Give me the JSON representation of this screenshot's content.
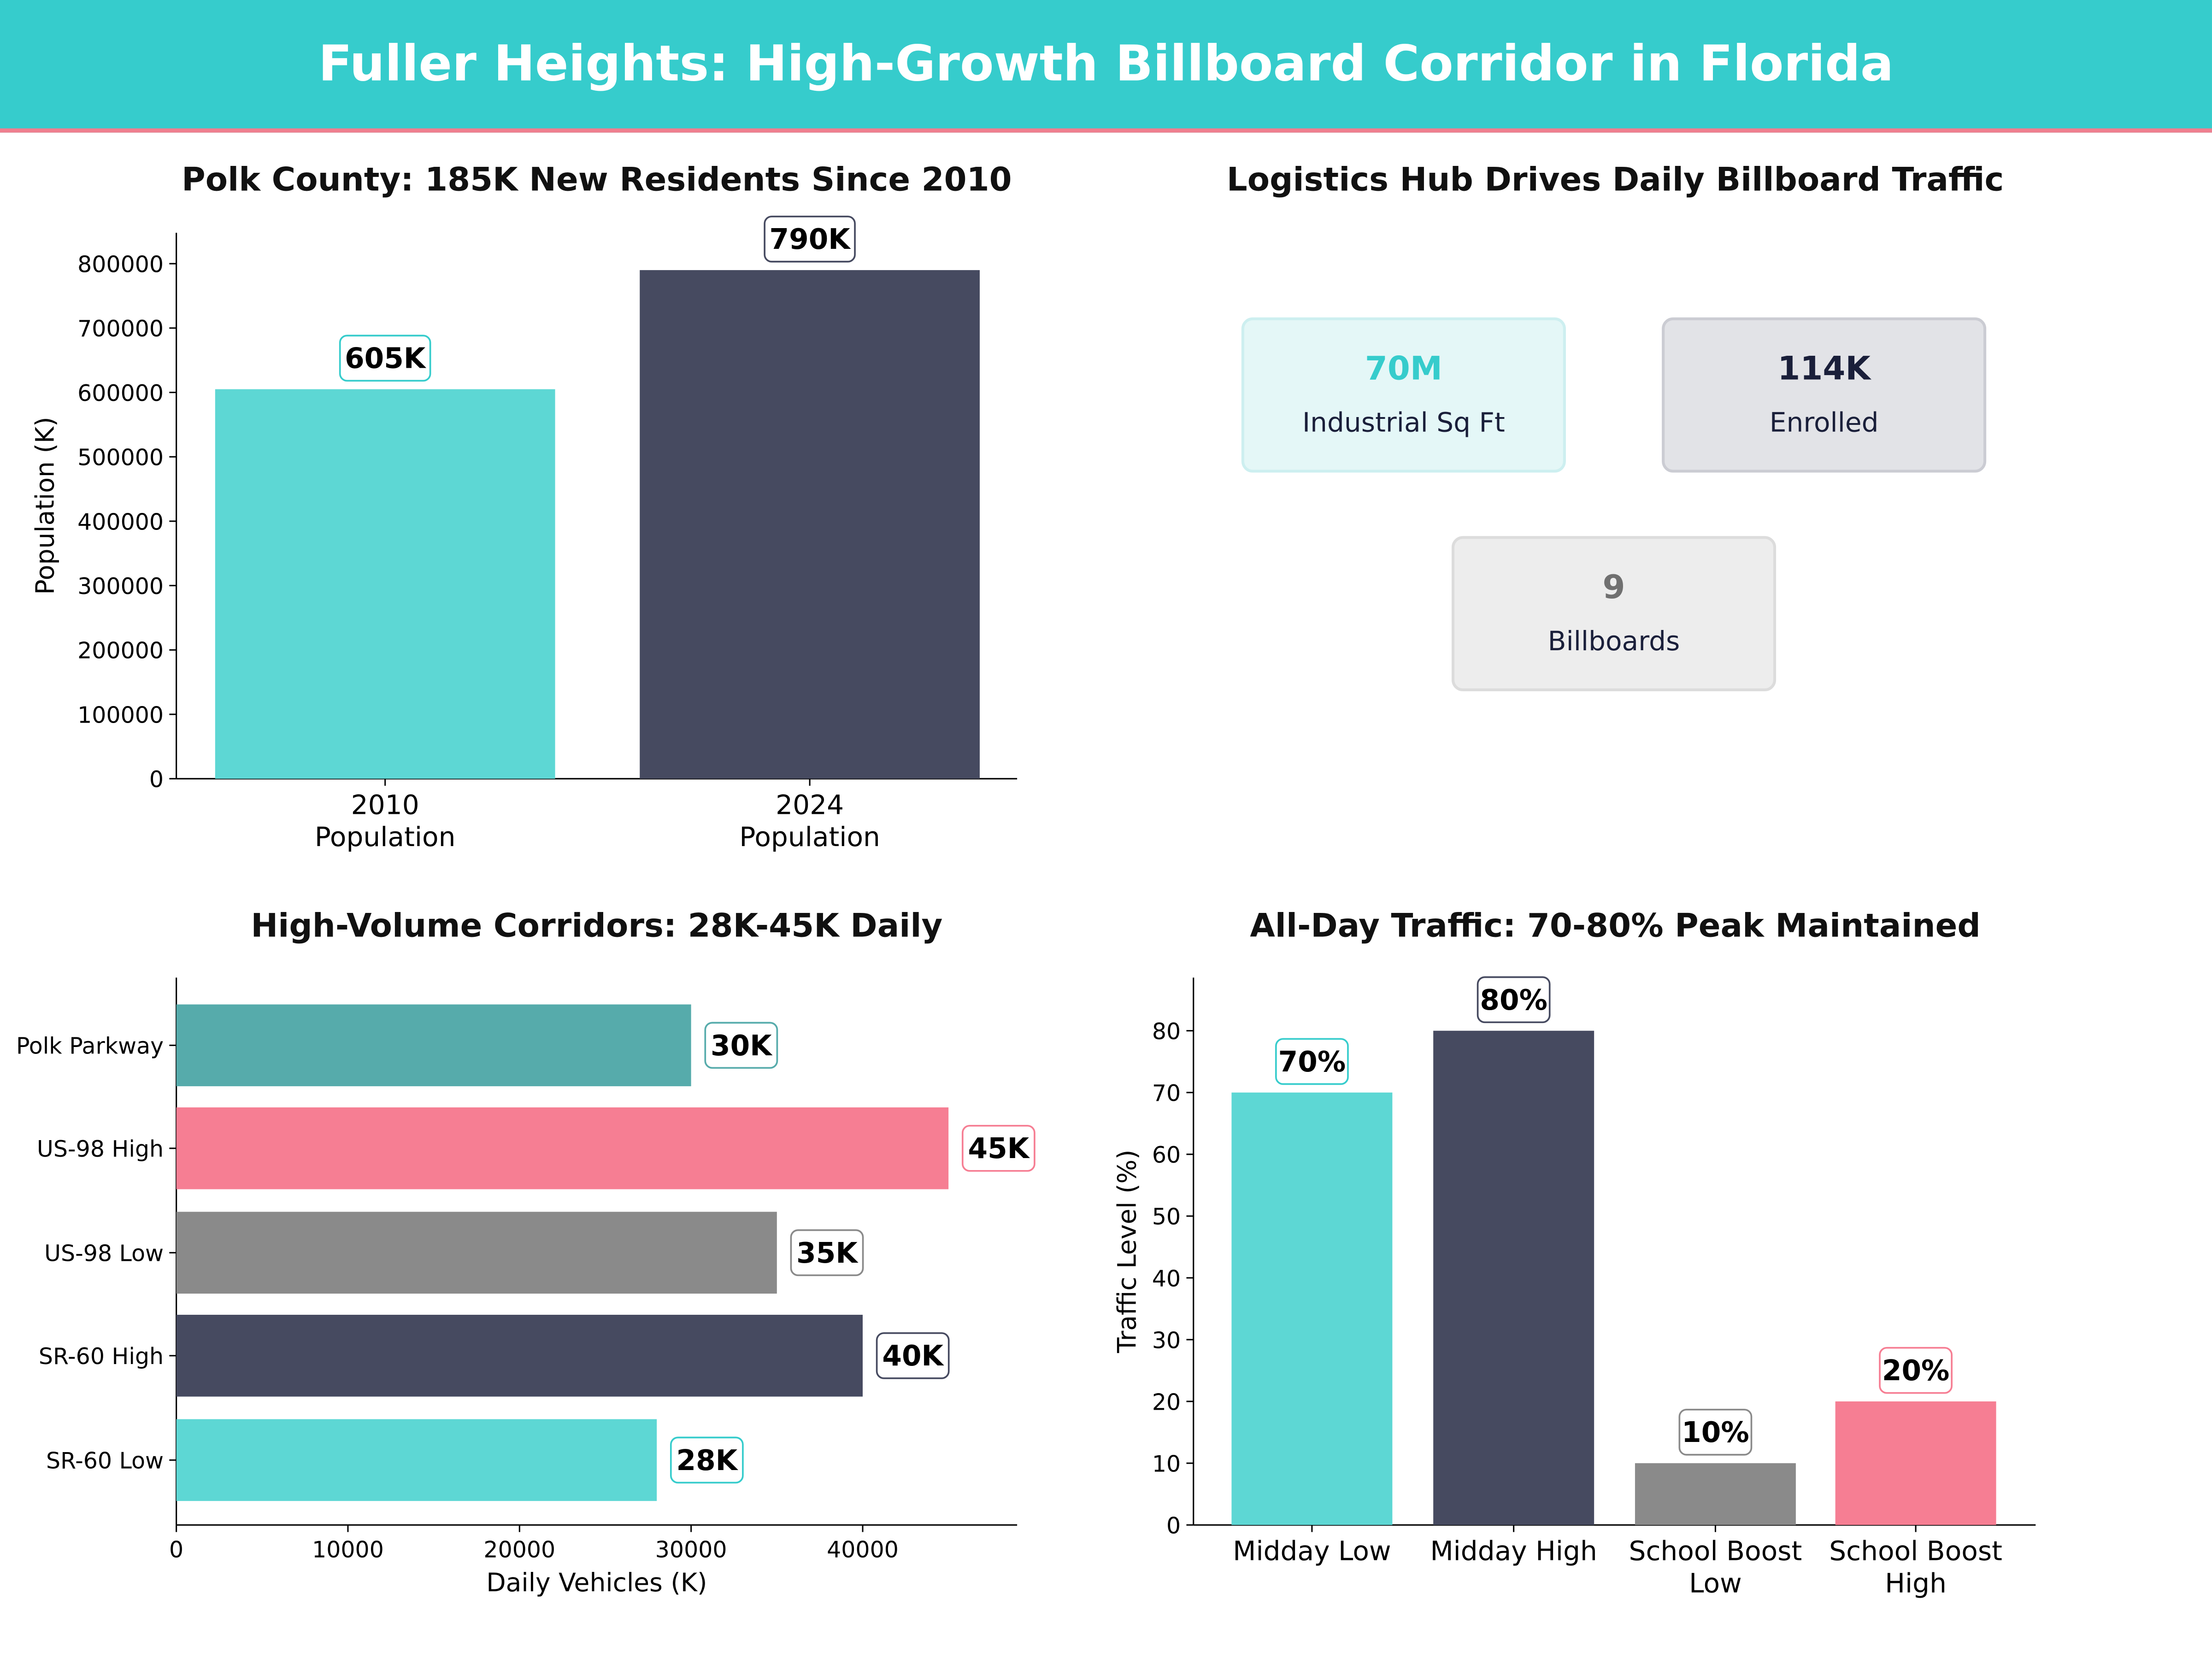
{
  "header": {
    "title": "Fuller Heights: High-Growth Billboard Corridor in Florida",
    "bg": "#36cccc",
    "accent": "#f07f8f"
  },
  "kpi_panel": {
    "title": "Logistics Hub Drives Daily Billboard Traffic",
    "cards": [
      {
        "value": "70M",
        "label": "Industrial Sq Ft",
        "value_color": "#36cccc",
        "bg": "#e4f7f7",
        "border": "#cdeff0"
      },
      {
        "value": "114K",
        "label": "Enrolled",
        "value_color": "#1a1f3a",
        "bg": "#e2e3e7",
        "border": "#cbccd3"
      },
      {
        "value": "9",
        "label": "Billboards",
        "value_color": "#707070",
        "bg": "#ededed",
        "border": "#dcdcdc"
      }
    ]
  },
  "chart_data": [
    {
      "type": "bar",
      "title": "Polk County: 185K New Residents Since 2010",
      "xlabel": "",
      "ylabel": "Population (K)",
      "categories": [
        "2010\nPopulation",
        "2024\nPopulation"
      ],
      "values": [
        605000,
        790000
      ],
      "data_labels": [
        "605K",
        "790K"
      ],
      "colors": [
        "#5dd7d4",
        "#464a60"
      ],
      "ylim": [
        0,
        848000
      ],
      "yticks": [
        0,
        100000,
        200000,
        300000,
        400000,
        500000,
        600000,
        700000,
        800000
      ],
      "grid": false
    },
    {
      "type": "bar",
      "orientation": "horizontal",
      "title": "High-Volume Corridors: 28K-45K Daily",
      "xlabel": "Daily Vehicles (K)",
      "ylabel": "",
      "categories": [
        "Polk Parkway",
        "US-98 High",
        "US-98 Low",
        "SR-60 High",
        "SR-60 Low"
      ],
      "values": [
        30000,
        45000,
        35000,
        40000,
        28000
      ],
      "data_labels": [
        "30K",
        "45K",
        "35K",
        "40K",
        "28K"
      ],
      "colors": [
        "#56abab",
        "#f67e93",
        "#8a8a8a",
        "#464a60",
        "#5dd7d4"
      ],
      "xlim": [
        0,
        49000
      ],
      "xticks": [
        0,
        10000,
        20000,
        30000,
        40000
      ],
      "grid": false
    },
    {
      "type": "bar",
      "title": "All-Day Traffic: 70-80% Peak Maintained",
      "xlabel": "",
      "ylabel": "Traffic Level (%)",
      "categories": [
        "Midday Low",
        "Midday High",
        "School Boost\nLow",
        "School Boost\nHigh"
      ],
      "values": [
        70,
        80,
        10,
        20
      ],
      "data_labels": [
        "70%",
        "80%",
        "10%",
        "20%"
      ],
      "colors": [
        "#5dd7d4",
        "#464a60",
        "#8a8a8a",
        "#f67e93"
      ],
      "ylim": [
        0,
        88.6
      ],
      "yticks": [
        0,
        10,
        20,
        30,
        40,
        50,
        60,
        70,
        80
      ],
      "grid": false
    }
  ]
}
